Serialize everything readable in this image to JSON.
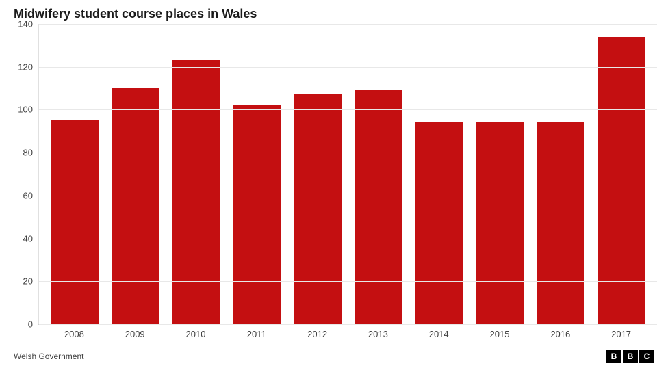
{
  "chart": {
    "type": "bar",
    "title": "Midwifery student course places in Wales",
    "title_fontsize": 18,
    "title_color": "#1a1a1a",
    "categories": [
      "2008",
      "2009",
      "2010",
      "2011",
      "2012",
      "2013",
      "2014",
      "2015",
      "2016",
      "2017"
    ],
    "values": [
      95,
      110,
      123,
      102,
      107,
      109,
      94,
      94,
      94,
      134
    ],
    "bar_color": "#c40f11",
    "bar_width_ratio": 0.78,
    "ylim": [
      0,
      140
    ],
    "ytick_step": 20,
    "yticks": [
      0,
      20,
      40,
      60,
      80,
      100,
      120,
      140
    ],
    "grid_color": "#e8e8e8",
    "axis_line_color": "#cccccc",
    "tick_label_color": "#404040",
    "tick_fontsize": 13,
    "background_color": "#ffffff"
  },
  "footer": {
    "source": "Welsh Government",
    "source_fontsize": 12,
    "source_color": "#404040",
    "logo_letters": [
      "B",
      "B",
      "C"
    ],
    "logo_bg": "#000000",
    "logo_fg": "#ffffff"
  }
}
